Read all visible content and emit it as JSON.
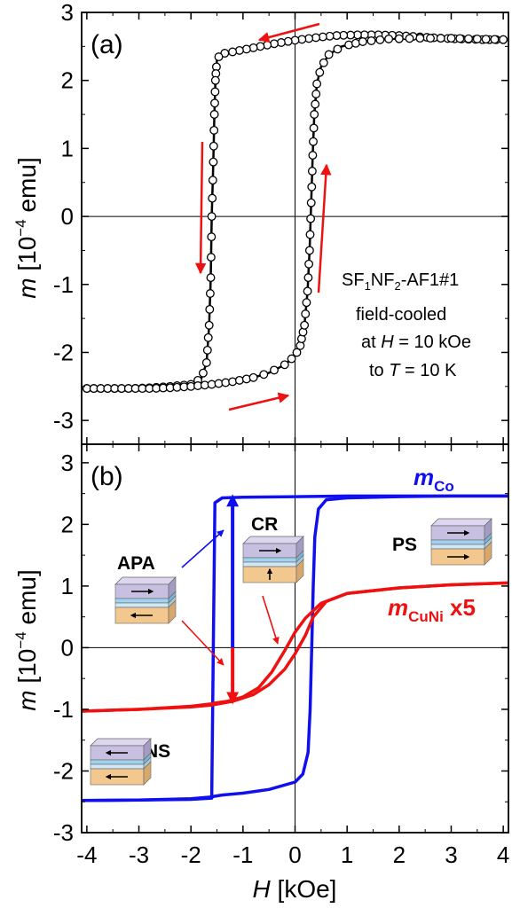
{
  "chart_data": [
    {
      "type": "scatter",
      "panel_label": "(a)",
      "ylabel_var": "m",
      "ylabel_unit": "[10",
      "ylabel_exp": "−4",
      "ylabel_tail": " emu]",
      "xlim": [
        -4.1,
        4.1
      ],
      "ylim": [
        -3.35,
        3.0
      ],
      "yticks": [
        -3,
        -2,
        -1,
        0,
        1,
        2,
        3
      ],
      "annotation": {
        "line1_a": "SF",
        "line1_sub1": "1",
        "line1_b": "NF",
        "line1_sub2": "2",
        "line1_c": "-AF1#1",
        "line2": "field-cooled",
        "line3_a": "at ",
        "line3_var": "H",
        "line3_b": " = 10 kOe",
        "line4_a": "to ",
        "line4_var": "T",
        "line4_b": " = 10 K"
      },
      "series": [
        {
          "descending": [
            [
              4.0,
              2.6
            ],
            [
              3.6,
              2.6
            ],
            [
              3.2,
              2.61
            ],
            [
              2.8,
              2.62
            ],
            [
              2.4,
              2.64
            ],
            [
              2.0,
              2.66
            ],
            [
              1.6,
              2.67
            ],
            [
              1.2,
              2.67
            ],
            [
              0.8,
              2.66
            ],
            [
              0.4,
              2.63
            ],
            [
              0.0,
              2.59
            ],
            [
              -0.4,
              2.54
            ],
            [
              -0.8,
              2.48
            ],
            [
              -1.0,
              2.45
            ],
            [
              -1.2,
              2.42
            ],
            [
              -1.35,
              2.4
            ],
            [
              -1.45,
              2.37
            ],
            [
              -1.5,
              2.3
            ],
            [
              -1.53,
              2.0
            ],
            [
              -1.55,
              1.5
            ],
            [
              -1.57,
              0.8
            ],
            [
              -1.6,
              0.0
            ],
            [
              -1.62,
              -0.9
            ],
            [
              -1.65,
              -1.6
            ],
            [
              -1.7,
              -2.15
            ],
            [
              -1.8,
              -2.38
            ],
            [
              -2.0,
              -2.47
            ],
            [
              -2.4,
              -2.5
            ],
            [
              -2.8,
              -2.52
            ],
            [
              -3.2,
              -2.53
            ],
            [
              -3.6,
              -2.53
            ],
            [
              -4.0,
              -2.53
            ]
          ],
          "ascending": [
            [
              -4.0,
              -2.53
            ],
            [
              -3.6,
              -2.53
            ],
            [
              -3.2,
              -2.53
            ],
            [
              -2.8,
              -2.53
            ],
            [
              -2.4,
              -2.52
            ],
            [
              -2.0,
              -2.5
            ],
            [
              -1.6,
              -2.47
            ],
            [
              -1.2,
              -2.43
            ],
            [
              -0.8,
              -2.37
            ],
            [
              -0.5,
              -2.3
            ],
            [
              -0.2,
              -2.18
            ],
            [
              0.0,
              -2.05
            ],
            [
              0.1,
              -1.9
            ],
            [
              0.18,
              -1.6
            ],
            [
              0.24,
              -1.1
            ],
            [
              0.28,
              -0.5
            ],
            [
              0.31,
              0.2
            ],
            [
              0.34,
              0.9
            ],
            [
              0.37,
              1.5
            ],
            [
              0.42,
              1.95
            ],
            [
              0.5,
              2.2
            ],
            [
              0.65,
              2.38
            ],
            [
              0.9,
              2.5
            ],
            [
              1.3,
              2.57
            ],
            [
              1.8,
              2.61
            ],
            [
              2.4,
              2.62
            ],
            [
              3.0,
              2.62
            ],
            [
              3.5,
              2.61
            ],
            [
              4.0,
              2.6
            ]
          ]
        }
      ]
    },
    {
      "type": "line",
      "panel_label": "(b)",
      "ylabel_var": "m",
      "ylabel_unit": "[10",
      "ylabel_exp": "−4",
      "ylabel_tail": " emu]",
      "xlabel_var": "H",
      "xlabel_unit": " [kOe]",
      "xlim": [
        -4.1,
        4.1
      ],
      "ylim": [
        -3.0,
        3.3
      ],
      "xticks": [
        -4,
        -3,
        -2,
        -1,
        0,
        1,
        2,
        3,
        4
      ],
      "xticklabels": [
        "-4",
        "-3",
        "-2",
        "-1",
        "0",
        "1",
        "2",
        "3",
        "4"
      ],
      "yticks": [
        -3,
        -2,
        -1,
        0,
        1,
        2,
        3
      ],
      "series": [
        {
          "name_main": "m",
          "name_sub": "Co",
          "name_suffix": "",
          "color": "#1010ee",
          "descending": [
            [
              4.1,
              2.46
            ],
            [
              3.0,
              2.46
            ],
            [
              2.0,
              2.45
            ],
            [
              1.0,
              2.43
            ],
            [
              0.6,
              2.4
            ],
            [
              0.45,
              2.25
            ],
            [
              0.38,
              1.8
            ],
            [
              0.35,
              1.0
            ],
            [
              0.32,
              0.0
            ],
            [
              0.29,
              -1.0
            ],
            [
              0.25,
              -1.7
            ],
            [
              0.15,
              -2.05
            ],
            [
              0.0,
              -2.18
            ],
            [
              -0.5,
              -2.3
            ],
            [
              -1.0,
              -2.36
            ],
            [
              -1.4,
              -2.39
            ],
            [
              -1.55,
              -2.41
            ],
            [
              -1.6,
              -2.42
            ],
            [
              -2.0,
              -2.45
            ],
            [
              -3.0,
              -2.47
            ],
            [
              -4.1,
              -2.48
            ]
          ],
          "ascending": [
            [
              -4.1,
              -2.48
            ],
            [
              -3.0,
              -2.47
            ],
            [
              -2.0,
              -2.46
            ],
            [
              -1.6,
              -2.44
            ],
            [
              -1.57,
              0.0
            ],
            [
              -1.54,
              2.35
            ],
            [
              -1.4,
              2.43
            ],
            [
              -1.0,
              2.44
            ],
            [
              0.0,
              2.45
            ],
            [
              1.0,
              2.46
            ],
            [
              2.0,
              2.46
            ],
            [
              4.1,
              2.46
            ]
          ]
        },
        {
          "name_main": "m",
          "name_sub": "CuNi",
          "name_suffix": " x5",
          "color": "#ee1111",
          "descending": [
            [
              4.1,
              1.05
            ],
            [
              3.0,
              1.02
            ],
            [
              2.0,
              0.97
            ],
            [
              1.0,
              0.88
            ],
            [
              0.5,
              0.72
            ],
            [
              0.2,
              0.48
            ],
            [
              0.0,
              0.25
            ],
            [
              -0.2,
              -0.05
            ],
            [
              -0.45,
              -0.4
            ],
            [
              -0.7,
              -0.65
            ],
            [
              -1.0,
              -0.8
            ],
            [
              -1.3,
              -0.87
            ],
            [
              -1.55,
              -0.9
            ],
            [
              -1.6,
              -0.91
            ],
            [
              -2.0,
              -0.95
            ],
            [
              -3.0,
              -1.0
            ],
            [
              -4.1,
              -1.03
            ]
          ],
          "ascending": [
            [
              -4.1,
              -1.03
            ],
            [
              -3.0,
              -1.0
            ],
            [
              -2.0,
              -0.96
            ],
            [
              -1.6,
              -0.93
            ],
            [
              -1.2,
              -0.87
            ],
            [
              -0.8,
              -0.76
            ],
            [
              -0.5,
              -0.6
            ],
            [
              -0.2,
              -0.35
            ],
            [
              0.0,
              -0.1
            ],
            [
              0.2,
              0.2
            ],
            [
              0.35,
              0.5
            ],
            [
              0.6,
              0.75
            ],
            [
              1.0,
              0.88
            ],
            [
              2.0,
              0.97
            ],
            [
              3.0,
              1.02
            ],
            [
              4.1,
              1.05
            ]
          ]
        }
      ],
      "state_labels": {
        "apa": "APA",
        "cr": "CR",
        "ps": "PS",
        "ns": "NS"
      }
    }
  ]
}
